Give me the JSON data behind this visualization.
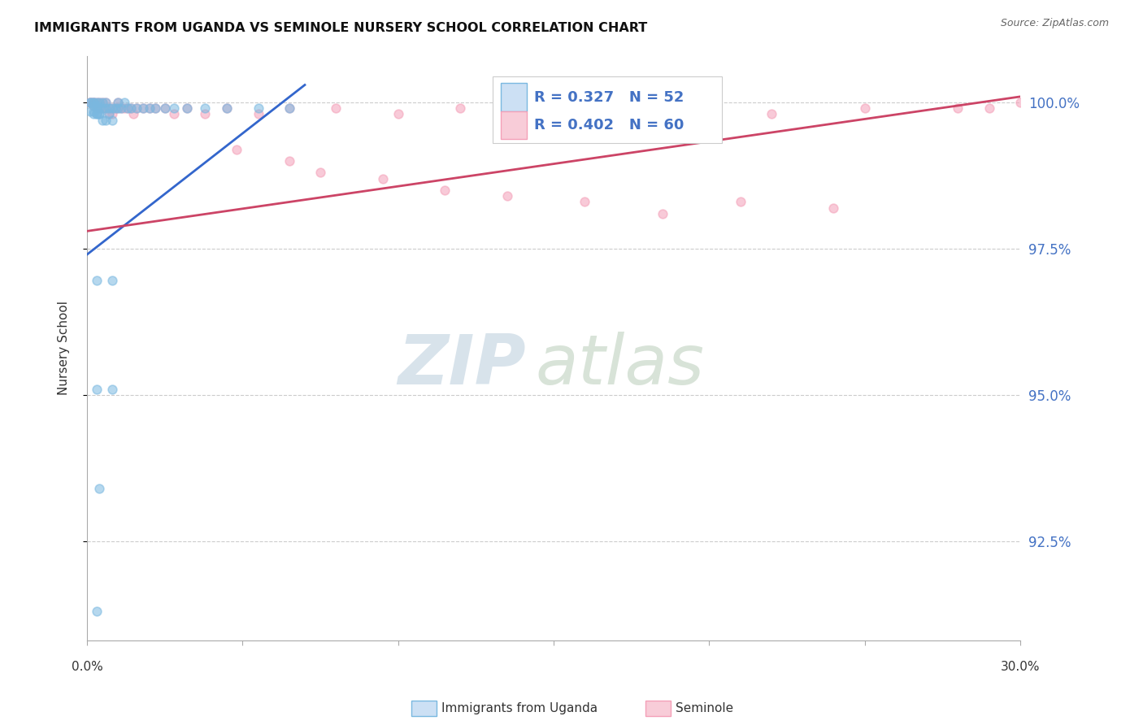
{
  "title": "IMMIGRANTS FROM UGANDA VS SEMINOLE NURSERY SCHOOL CORRELATION CHART",
  "source": "Source: ZipAtlas.com",
  "ylabel": "Nursery School",
  "legend_label1": "Immigrants from Uganda",
  "legend_label2": "Seminole",
  "xlim": [
    0.0,
    0.3
  ],
  "ylim": [
    0.908,
    1.008
  ],
  "ytick_values": [
    1.0,
    0.975,
    0.95,
    0.925
  ],
  "ytick_labels": [
    "100.0%",
    "97.5%",
    "95.0%",
    "92.5%"
  ],
  "blue_color": "#7ab8e0",
  "pink_color": "#f4a0b8",
  "blue_line_color": "#3366cc",
  "pink_line_color": "#cc4466",
  "marker_size": 60,
  "blue_scatter_x": [
    0.001,
    0.001,
    0.002,
    0.002,
    0.002,
    0.003,
    0.003,
    0.003,
    0.003,
    0.004,
    0.004,
    0.004,
    0.005,
    0.005,
    0.006,
    0.006,
    0.007,
    0.007,
    0.008,
    0.009,
    0.01,
    0.01,
    0.011,
    0.012,
    0.013,
    0.014,
    0.016,
    0.018,
    0.02,
    0.022,
    0.025,
    0.028,
    0.032,
    0.038,
    0.045,
    0.055,
    0.065,
    0.001,
    0.002,
    0.002,
    0.003,
    0.004,
    0.005,
    0.006,
    0.008,
    0.003,
    0.008,
    0.003,
    0.008,
    0.004,
    0.003
  ],
  "blue_scatter_y": [
    1.0,
    1.0,
    1.0,
    1.0,
    0.9995,
    1.0,
    0.9995,
    0.999,
    0.998,
    1.0,
    0.999,
    0.998,
    1.0,
    0.999,
    1.0,
    0.999,
    0.999,
    0.998,
    0.999,
    0.999,
    1.0,
    0.999,
    0.999,
    1.0,
    0.999,
    0.999,
    0.999,
    0.999,
    0.999,
    0.999,
    0.999,
    0.999,
    0.999,
    0.999,
    0.999,
    0.999,
    0.999,
    0.9985,
    0.9985,
    0.998,
    0.998,
    0.998,
    0.997,
    0.997,
    0.997,
    0.9695,
    0.9695,
    0.951,
    0.951,
    0.934,
    0.913
  ],
  "pink_scatter_x": [
    0.001,
    0.001,
    0.002,
    0.002,
    0.002,
    0.003,
    0.003,
    0.003,
    0.004,
    0.004,
    0.005,
    0.005,
    0.006,
    0.006,
    0.007,
    0.007,
    0.008,
    0.008,
    0.009,
    0.01,
    0.01,
    0.011,
    0.012,
    0.013,
    0.014,
    0.015,
    0.016,
    0.018,
    0.02,
    0.022,
    0.025,
    0.028,
    0.032,
    0.038,
    0.045,
    0.055,
    0.065,
    0.08,
    0.1,
    0.12,
    0.14,
    0.16,
    0.18,
    0.2,
    0.22,
    0.25,
    0.28,
    0.29,
    0.3,
    0.048,
    0.065,
    0.075,
    0.095,
    0.115,
    0.135,
    0.16,
    0.185,
    0.21,
    0.24
  ],
  "pink_scatter_y": [
    1.0,
    1.0,
    1.0,
    1.0,
    0.9995,
    1.0,
    0.9995,
    0.999,
    1.0,
    0.999,
    1.0,
    0.999,
    1.0,
    0.999,
    0.999,
    0.998,
    0.999,
    0.998,
    0.999,
    1.0,
    0.999,
    0.999,
    0.999,
    0.999,
    0.999,
    0.998,
    0.999,
    0.999,
    0.999,
    0.999,
    0.999,
    0.998,
    0.999,
    0.998,
    0.999,
    0.998,
    0.999,
    0.999,
    0.998,
    0.999,
    0.998,
    0.999,
    0.998,
    0.999,
    0.998,
    0.999,
    0.999,
    0.999,
    1.0,
    0.992,
    0.99,
    0.988,
    0.987,
    0.985,
    0.984,
    0.983,
    0.981,
    0.983,
    0.982
  ],
  "blue_line_x": [
    0.0,
    0.07
  ],
  "blue_line_y": [
    0.974,
    1.003
  ],
  "pink_line_x": [
    0.0,
    0.3
  ],
  "pink_line_y": [
    0.978,
    1.001
  ],
  "background_color": "#ffffff",
  "grid_color": "#cccccc"
}
